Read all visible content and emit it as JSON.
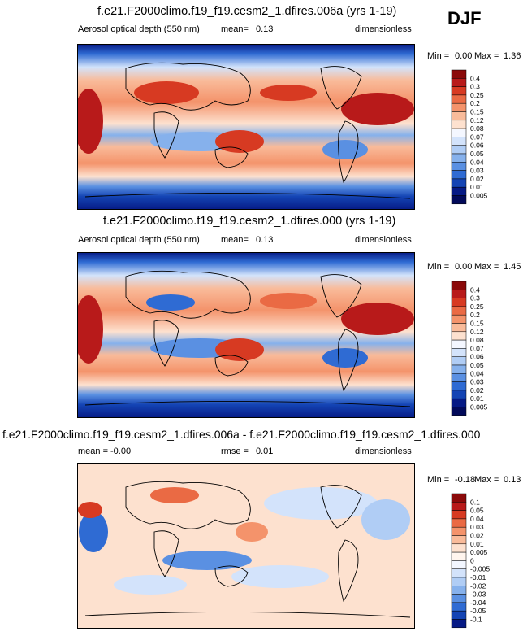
{
  "season": "DJF",
  "panels": [
    {
      "title": "f.e21.F2000climo.f19_f19.cesm2_1.dfires.006a (yrs 1-19)",
      "variable": "Aerosol optical depth (550 nm)",
      "stat_label": "mean=",
      "stat_value": "0.13",
      "units": "dimensionless",
      "min_label": "Min =",
      "min_value": "0.00",
      "max_label": "Max =",
      "max_value": "1.36",
      "levels": [
        "0.4",
        "0.3",
        "0.25",
        "0.2",
        "0.15",
        "0.12",
        "0.08",
        "0.07",
        "0.06",
        "0.05",
        "0.04",
        "0.03",
        "0.02",
        "0.01",
        "0.005"
      ],
      "colors": [
        "#8b0a0a",
        "#b81a1a",
        "#d73a22",
        "#ea6a44",
        "#f4936b",
        "#f9bb9a",
        "#fde1cf",
        "#f4f7ff",
        "#d3e3fb",
        "#b0cdf5",
        "#86b1ec",
        "#5a90e2",
        "#2f6bd3",
        "#1444b4",
        "#061a85",
        "#020a5a"
      ]
    },
    {
      "title": "f.e21.F2000climo.f19_f19.cesm2_1.dfires.000 (yrs 1-19)",
      "variable": "Aerosol optical depth (550 nm)",
      "stat_label": "mean=",
      "stat_value": "0.13",
      "units": "dimensionless",
      "min_label": "Min =",
      "min_value": "0.00",
      "max_label": "Max =",
      "max_value": "1.45",
      "levels": [
        "0.4",
        "0.3",
        "0.25",
        "0.2",
        "0.15",
        "0.12",
        "0.08",
        "0.07",
        "0.06",
        "0.05",
        "0.04",
        "0.03",
        "0.02",
        "0.01",
        "0.005"
      ],
      "colors": [
        "#8b0a0a",
        "#b81a1a",
        "#d73a22",
        "#ea6a44",
        "#f4936b",
        "#f9bb9a",
        "#fde1cf",
        "#f4f7ff",
        "#d3e3fb",
        "#b0cdf5",
        "#86b1ec",
        "#5a90e2",
        "#2f6bd3",
        "#1444b4",
        "#061a85",
        "#020a5a"
      ]
    },
    {
      "title": "f.e21.F2000climo.f19_f19.cesm2_1.dfires.006a - f.e21.F2000climo.f19_f19.cesm2_1.dfires.000",
      "variable": "",
      "stat_label": "mean =",
      "stat_value": "-0.00",
      "stat2_label": "rmse =",
      "stat2_value": "0.01",
      "units": "dimensionless",
      "min_label": "Min =",
      "min_value": "-0.18",
      "max_label": "Max =",
      "max_value": "0.13",
      "levels": [
        "0.1",
        "0.05",
        "0.04",
        "0.03",
        "0.02",
        "0.01",
        "0.005",
        "0",
        "-0.005",
        "-0.01",
        "-0.02",
        "-0.03",
        "-0.04",
        "-0.05",
        "-0.1"
      ],
      "colors": [
        "#8b0a0a",
        "#b81a1a",
        "#d73a22",
        "#ea6a44",
        "#f4936b",
        "#f9bb9a",
        "#fde1cf",
        "#fff5ee",
        "#f2f6ff",
        "#d3e3fb",
        "#b0cdf5",
        "#86b1ec",
        "#5a90e2",
        "#2f6bd3",
        "#1444b4",
        "#061a85"
      ]
    }
  ],
  "chart_data": [
    {
      "type": "heatmap",
      "title": "f.e21.F2000climo.f19_f19.cesm2_1.dfires.006a (yrs 1-19)",
      "subtitle": "Aerosol optical depth (550 nm)",
      "mean": 0.13,
      "min": 0.0,
      "max": 1.36,
      "units": "dimensionless",
      "contour_levels": [
        0.005,
        0.01,
        0.02,
        0.03,
        0.04,
        0.05,
        0.06,
        0.07,
        0.08,
        0.12,
        0.15,
        0.2,
        0.25,
        0.3,
        0.4
      ]
    },
    {
      "type": "heatmap",
      "title": "f.e21.F2000climo.f19_f19.cesm2_1.dfires.000 (yrs 1-19)",
      "subtitle": "Aerosol optical depth (550 nm)",
      "mean": 0.13,
      "min": 0.0,
      "max": 1.45,
      "units": "dimensionless",
      "contour_levels": [
        0.005,
        0.01,
        0.02,
        0.03,
        0.04,
        0.05,
        0.06,
        0.07,
        0.08,
        0.12,
        0.15,
        0.2,
        0.25,
        0.3,
        0.4
      ]
    },
    {
      "type": "heatmap",
      "title": "f.e21.F2000climo.f19_f19.cesm2_1.dfires.006a - f.e21.F2000climo.f19_f19.cesm2_1.dfires.000",
      "mean": -0.0,
      "rmse": 0.01,
      "min": -0.18,
      "max": 0.13,
      "units": "dimensionless",
      "contour_levels": [
        -0.1,
        -0.05,
        -0.04,
        -0.03,
        -0.02,
        -0.01,
        -0.005,
        0,
        0.005,
        0.01,
        0.02,
        0.03,
        0.04,
        0.05,
        0.1
      ]
    }
  ]
}
